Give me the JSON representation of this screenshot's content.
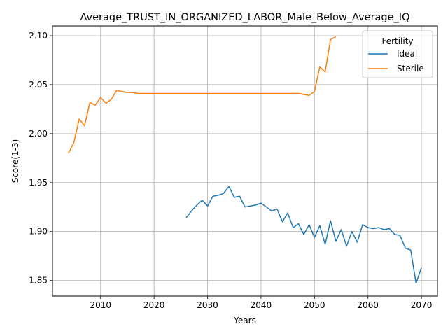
{
  "chart_data": {
    "type": "line",
    "title": "Average_TRUST_IN_ORGANIZED_LABOR_Male_Below_Average_IQ",
    "xlabel": "Years",
    "ylabel": "Score(1-3)",
    "xlim": [
      2001,
      2073
    ],
    "ylim": [
      1.834,
      2.11
    ],
    "xticks": [
      2010,
      2020,
      2030,
      2040,
      2050,
      2060,
      2070
    ],
    "xtick_labels": [
      "2010",
      "2020",
      "2030",
      "2040",
      "2050",
      "2060",
      "2070"
    ],
    "yticks": [
      1.85,
      1.9,
      1.95,
      2.0,
      2.05,
      2.1
    ],
    "ytick_labels": [
      "1.85",
      "1.90",
      "1.95",
      "2.00",
      "2.05",
      "2.10"
    ],
    "grid": true,
    "legend": {
      "title": "Fertility",
      "position": "top-right"
    },
    "series": [
      {
        "name": "Ideal",
        "color": "#1f77b4",
        "x": [
          2026,
          2027,
          2028,
          2029,
          2030,
          2031,
          2032,
          2033,
          2034,
          2035,
          2036,
          2037,
          2038,
          2039,
          2040,
          2041,
          2042,
          2043,
          2044,
          2045,
          2046,
          2047,
          2048,
          2049,
          2050,
          2051,
          2052,
          2053,
          2054,
          2055,
          2056,
          2057,
          2058,
          2059,
          2060,
          2061,
          2062,
          2063,
          2064,
          2065,
          2066,
          2067,
          2068,
          2069,
          2070
        ],
        "y": [
          1.914,
          1.921,
          1.927,
          1.932,
          1.926,
          1.936,
          1.937,
          1.939,
          1.946,
          1.935,
          1.936,
          1.925,
          1.926,
          1.927,
          1.929,
          1.925,
          1.921,
          1.923,
          1.91,
          1.919,
          1.904,
          1.908,
          1.897,
          1.907,
          1.894,
          1.906,
          1.887,
          1.911,
          1.89,
          1.902,
          1.885,
          1.9,
          1.889,
          1.907,
          1.904,
          1.903,
          1.904,
          1.902,
          1.903,
          1.897,
          1.896,
          1.883,
          1.881,
          1.847,
          1.863
        ]
      },
      {
        "name": "Sterile",
        "color": "#ff7f0e",
        "x": [
          2004,
          2005,
          2006,
          2007,
          2008,
          2009,
          2010,
          2011,
          2012,
          2013,
          2014,
          2015,
          2016,
          2017,
          2018,
          2019,
          2020,
          2021,
          2022,
          2023,
          2024,
          2025,
          2026,
          2027,
          2028,
          2029,
          2030,
          2031,
          2032,
          2033,
          2034,
          2035,
          2036,
          2037,
          2038,
          2039,
          2040,
          2041,
          2042,
          2043,
          2044,
          2045,
          2046,
          2047,
          2048,
          2049,
          2050,
          2051,
          2052,
          2053,
          2054
        ],
        "y": [
          1.98,
          1.991,
          2.015,
          2.008,
          2.032,
          2.029,
          2.037,
          2.031,
          2.035,
          2.044,
          2.043,
          2.042,
          2.042,
          2.041,
          2.041,
          2.041,
          2.041,
          2.041,
          2.041,
          2.041,
          2.041,
          2.041,
          2.041,
          2.041,
          2.041,
          2.041,
          2.041,
          2.041,
          2.041,
          2.041,
          2.041,
          2.041,
          2.041,
          2.041,
          2.041,
          2.041,
          2.041,
          2.041,
          2.041,
          2.041,
          2.041,
          2.041,
          2.041,
          2.041,
          2.04,
          2.039,
          2.043,
          2.068,
          2.063,
          2.096,
          2.099
        ]
      }
    ]
  }
}
